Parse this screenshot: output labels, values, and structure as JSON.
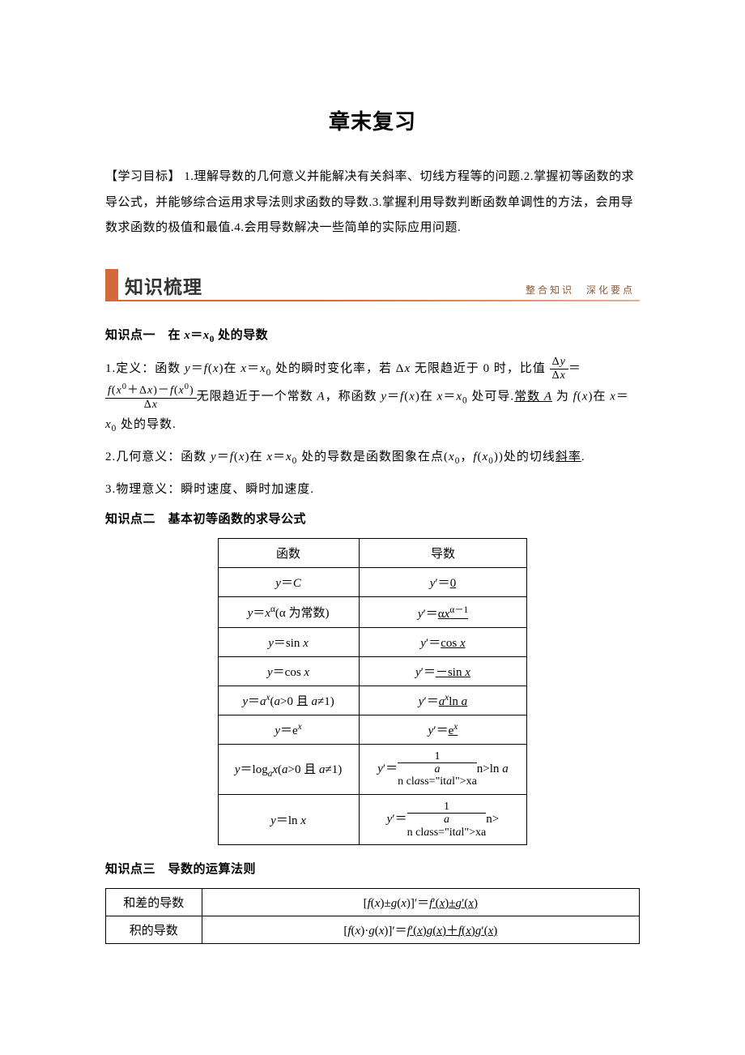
{
  "title": "章末复习",
  "goals": {
    "label": "【学习目标】",
    "text": " 1.理解导数的几何意义并能解决有关斜率、切线方程等的问题.2.掌握初等函数的求导公式，并能够综合运用求导法则求函数的导数.3.掌握利用导数判断函数单调性的方法，会用导数求函数的极值和最值.4.会用导数解决一些简单的实际应用问题."
  },
  "section": {
    "heading": "知识梳理",
    "tagline": "整合知识　深化要点",
    "banner_color": "#d36a3a"
  },
  "kp1": {
    "title_prefix": "知识点一　在 ",
    "title_var": "x＝x",
    "title_suffix": " 处的导数",
    "p1_a": "1.定义：函数 ",
    "p1_b": "在 ",
    "p1_c": " 处的瞬时变化率，若 Δ",
    "p1_d": " 无限趋近于 0 时，比值",
    "p1_e": "＝",
    "frac1_num": "Δy",
    "frac1_den": "Δx",
    "frac2_num_a": "f(x",
    "frac2_num_b": "＋Δx)－f(x",
    "frac2_num_c": ")",
    "frac2_den": "Δx",
    "p1_f": "无限趋近于一个常数 ",
    "p1_g": "，称函数 ",
    "p1_h": "在 ",
    "p1_i": " 处可导.",
    "p1_under": "常数 A",
    "p1_j": " 为 ",
    "p1_k": "在 ",
    "p1_l": "处的导数.",
    "p2_a": "2.几何意义：函数 ",
    "p2_b": "在 ",
    "p2_c": " 处的导数是函数图象在点(",
    "p2_d": "))处的切线",
    "p2_under": "斜率",
    "p2_e": ".",
    "p3": "3.物理意义：瞬时速度、瞬时加速度."
  },
  "kp2": {
    "title": "知识点二　基本初等函数的求导公式",
    "table": {
      "header": [
        "函数",
        "导数"
      ],
      "rows": [
        {
          "f": "y＝C",
          "d_prefix": "y′＝",
          "d_u": "0"
        },
        {
          "f": "y＝x<sup>α</sup>(α 为常数)",
          "d_prefix": "y′＝",
          "d_u": "αx<sup>α－1</sup>"
        },
        {
          "f": "y＝sin x",
          "d_prefix": "y′＝",
          "d_u": "cos x"
        },
        {
          "f": "y＝cos x",
          "d_prefix": "y′＝",
          "d_u": "－sin x"
        },
        {
          "f": "y＝a<sup>x</sup>(a>0 且 a≠1)",
          "d_prefix": "y′＝",
          "d_u": "a<sup>x</sup>ln a"
        },
        {
          "f": "y＝e<sup>x</sup>",
          "d_prefix": "y′＝",
          "d_u": "e<sup>x</sup>"
        },
        {
          "f": "y＝log<sub>a</sub>x(a>0 且 a≠1)",
          "d_prefix": "y′＝",
          "frac_n": "1",
          "frac_d": "xln a"
        },
        {
          "f": "y＝ln x",
          "d_prefix": "y′＝",
          "frac_n": "1",
          "frac_d": "x"
        }
      ]
    }
  },
  "kp3": {
    "title": "知识点三　导数的运算法则",
    "rows": [
      {
        "label": "和差的导数",
        "lhs": "[f(x)±g(x)]′＝",
        "rhs_u": "f′(x)±g′(x)"
      },
      {
        "label": "积的导数",
        "lhs": "[f(x)·g(x)]′＝",
        "rhs_u": "f′(x)g(x)＋f(x)g′(x)"
      }
    ]
  }
}
